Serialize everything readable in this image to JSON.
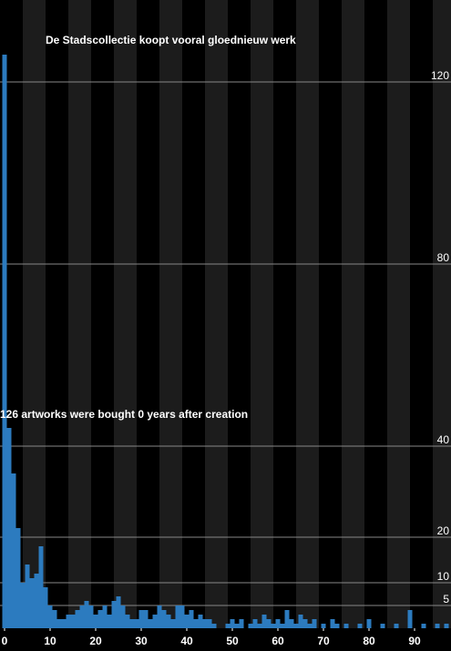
{
  "chart_data": {
    "type": "histogram",
    "title": "De Stadscollectie koopt vooral gloednieuw werk",
    "annotation": "126 artworks were bought 0 years after creation",
    "bins": [
      0,
      1,
      2,
      3,
      4,
      5,
      6,
      7,
      8,
      9,
      10,
      11,
      12,
      13,
      14,
      15,
      16,
      17,
      18,
      19,
      20,
      21,
      22,
      23,
      24,
      25,
      26,
      27,
      28,
      29,
      30,
      31,
      32,
      33,
      34,
      35,
      36,
      37,
      38,
      39,
      40,
      41,
      42,
      43,
      44,
      45,
      46,
      47,
      48,
      49,
      50,
      51,
      52,
      53,
      54,
      55,
      56,
      57,
      58,
      59,
      60,
      61,
      62,
      63,
      64,
      65,
      66,
      67,
      68,
      69,
      70,
      71,
      72,
      73,
      74,
      75,
      76,
      77,
      78,
      79,
      80,
      81,
      82,
      83,
      84,
      85,
      86,
      87,
      88,
      89,
      90,
      91,
      92,
      93,
      94,
      95,
      96,
      97,
      98
    ],
    "values": [
      126,
      44,
      34,
      22,
      10,
      14,
      11,
      12,
      18,
      9,
      5,
      4,
      2,
      2,
      3,
      3,
      4,
      5,
      6,
      5,
      3,
      4,
      5,
      3,
      6,
      7,
      5,
      3,
      2,
      2,
      4,
      4,
      2,
      3,
      5,
      4,
      3,
      2,
      5,
      5,
      3,
      4,
      2,
      3,
      2,
      2,
      1,
      0,
      0,
      1,
      2,
      1,
      2,
      0,
      1,
      2,
      1,
      3,
      2,
      1,
      2,
      1,
      4,
      2,
      1,
      3,
      2,
      1,
      2,
      0,
      1,
      0,
      2,
      1,
      0,
      1,
      0,
      0,
      1,
      0,
      2,
      0,
      0,
      1,
      0,
      0,
      1,
      0,
      0,
      4,
      0,
      0,
      1,
      0,
      0,
      1,
      0,
      1
    ],
    "color": "#2c7bbf",
    "xlim": [
      -0.5,
      98.5
    ],
    "xticks": [
      0,
      10,
      20,
      30,
      40,
      50,
      60,
      70,
      80,
      90
    ],
    "ylim": [
      0,
      138
    ],
    "yticks": [
      5,
      10,
      20,
      40,
      80,
      120
    ],
    "grid": true
  }
}
